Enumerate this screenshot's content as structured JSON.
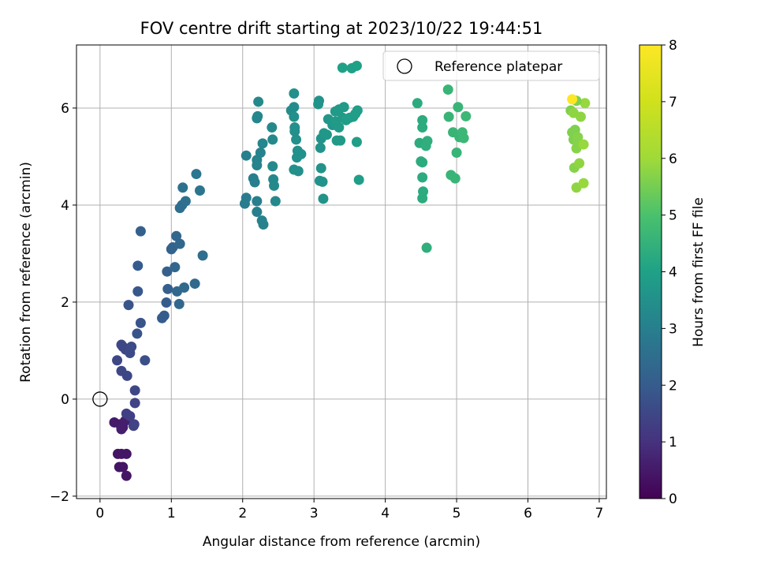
{
  "chart_data": {
    "type": "scatter",
    "title": "FOV centre drift starting at 2023/10/22 19:44:51",
    "xlabel": "Angular distance from reference (arcmin)",
    "ylabel": "Rotation from reference (arcmin)",
    "xlim": [
      -0.33,
      7.1
    ],
    "ylim": [
      -2.05,
      7.3
    ],
    "xticks": [
      0,
      1,
      2,
      3,
      4,
      5,
      6,
      7
    ],
    "yticks": [
      -2,
      0,
      2,
      4,
      6
    ],
    "grid": true,
    "legend": {
      "location": "top-right",
      "entries": [
        "Reference platepar"
      ]
    },
    "reference_point": {
      "name": "Reference platepar",
      "x": 0,
      "y": 0
    },
    "colorbar": {
      "label": "Hours from first FF file",
      "range": [
        0,
        8
      ],
      "ticks": [
        0,
        1,
        2,
        3,
        4,
        5,
        6,
        7,
        8
      ],
      "colormap": "viridis"
    },
    "points": [
      {
        "x": 0.2,
        "y": -0.48,
        "h": 0.5
      },
      {
        "x": 0.28,
        "y": -0.52,
        "h": 0.5
      },
      {
        "x": 0.32,
        "y": -0.58,
        "h": 0.6
      },
      {
        "x": 0.3,
        "y": -0.62,
        "h": 0.6
      },
      {
        "x": 0.35,
        "y": -0.45,
        "h": 0.6
      },
      {
        "x": 0.25,
        "y": -1.13,
        "h": 0.4
      },
      {
        "x": 0.3,
        "y": -1.13,
        "h": 0.4
      },
      {
        "x": 0.37,
        "y": -1.13,
        "h": 0.4
      },
      {
        "x": 0.27,
        "y": -1.4,
        "h": 0.4
      },
      {
        "x": 0.32,
        "y": -1.4,
        "h": 0.4
      },
      {
        "x": 0.37,
        "y": -1.58,
        "h": 0.4
      },
      {
        "x": 0.47,
        "y": -0.55,
        "h": 1.4
      },
      {
        "x": 0.48,
        "y": -0.52,
        "h": 1.4
      },
      {
        "x": 0.37,
        "y": -0.3,
        "h": 1.3
      },
      {
        "x": 0.42,
        "y": -0.35,
        "h": 1.3
      },
      {
        "x": 0.49,
        "y": -0.08,
        "h": 1.4
      },
      {
        "x": 0.49,
        "y": 0.18,
        "h": 1.5
      },
      {
        "x": 0.38,
        "y": 0.48,
        "h": 1.5
      },
      {
        "x": 0.3,
        "y": 0.58,
        "h": 1.5
      },
      {
        "x": 0.24,
        "y": 0.8,
        "h": 1.5
      },
      {
        "x": 0.32,
        "y": 1.08,
        "h": 1.5
      },
      {
        "x": 0.3,
        "y": 1.12,
        "h": 1.5
      },
      {
        "x": 0.36,
        "y": 1.02,
        "h": 1.5
      },
      {
        "x": 0.44,
        "y": 1.08,
        "h": 1.6
      },
      {
        "x": 0.42,
        "y": 0.95,
        "h": 1.6
      },
      {
        "x": 0.52,
        "y": 1.35,
        "h": 1.8
      },
      {
        "x": 0.57,
        "y": 1.57,
        "h": 1.8
      },
      {
        "x": 0.63,
        "y": 0.8,
        "h": 1.7
      },
      {
        "x": 0.4,
        "y": 1.94,
        "h": 1.8
      },
      {
        "x": 0.53,
        "y": 2.22,
        "h": 1.9
      },
      {
        "x": 0.53,
        "y": 2.75,
        "h": 2.0
      },
      {
        "x": 0.57,
        "y": 3.46,
        "h": 2.1
      },
      {
        "x": 0.87,
        "y": 1.67,
        "h": 2.0
      },
      {
        "x": 0.9,
        "y": 1.72,
        "h": 2.0
      },
      {
        "x": 0.93,
        "y": 1.99,
        "h": 2.0
      },
      {
        "x": 0.95,
        "y": 2.27,
        "h": 2.1
      },
      {
        "x": 0.94,
        "y": 2.63,
        "h": 2.1
      },
      {
        "x": 1.0,
        "y": 3.09,
        "h": 2.2
      },
      {
        "x": 1.02,
        "y": 3.13,
        "h": 2.2
      },
      {
        "x": 1.07,
        "y": 3.36,
        "h": 2.3
      },
      {
        "x": 1.12,
        "y": 3.2,
        "h": 2.3
      },
      {
        "x": 1.05,
        "y": 2.72,
        "h": 2.3
      },
      {
        "x": 1.08,
        "y": 2.22,
        "h": 2.3
      },
      {
        "x": 1.11,
        "y": 1.96,
        "h": 2.3
      },
      {
        "x": 1.18,
        "y": 2.3,
        "h": 2.4
      },
      {
        "x": 1.33,
        "y": 2.38,
        "h": 2.4
      },
      {
        "x": 1.44,
        "y": 2.96,
        "h": 2.5
      },
      {
        "x": 1.12,
        "y": 3.94,
        "h": 2.5
      },
      {
        "x": 1.15,
        "y": 4.0,
        "h": 2.5
      },
      {
        "x": 1.2,
        "y": 4.08,
        "h": 2.6
      },
      {
        "x": 1.16,
        "y": 4.36,
        "h": 2.6
      },
      {
        "x": 1.35,
        "y": 4.64,
        "h": 2.7
      },
      {
        "x": 1.4,
        "y": 4.3,
        "h": 2.7
      },
      {
        "x": 2.03,
        "y": 4.03,
        "h": 2.9
      },
      {
        "x": 2.05,
        "y": 4.15,
        "h": 2.9
      },
      {
        "x": 2.05,
        "y": 5.02,
        "h": 3.0
      },
      {
        "x": 2.15,
        "y": 4.55,
        "h": 3.0
      },
      {
        "x": 2.17,
        "y": 4.47,
        "h": 3.0
      },
      {
        "x": 2.2,
        "y": 4.08,
        "h": 3.0
      },
      {
        "x": 2.2,
        "y": 3.86,
        "h": 3.0
      },
      {
        "x": 2.27,
        "y": 3.68,
        "h": 3.1
      },
      {
        "x": 2.29,
        "y": 3.6,
        "h": 3.1
      },
      {
        "x": 2.2,
        "y": 4.82,
        "h": 3.1
      },
      {
        "x": 2.2,
        "y": 4.93,
        "h": 3.1
      },
      {
        "x": 2.25,
        "y": 5.08,
        "h": 3.1
      },
      {
        "x": 2.28,
        "y": 5.27,
        "h": 3.2
      },
      {
        "x": 2.2,
        "y": 5.79,
        "h": 3.2
      },
      {
        "x": 2.21,
        "y": 5.83,
        "h": 3.2
      },
      {
        "x": 2.22,
        "y": 6.13,
        "h": 3.3
      },
      {
        "x": 2.41,
        "y": 5.6,
        "h": 3.3
      },
      {
        "x": 2.42,
        "y": 5.35,
        "h": 3.3
      },
      {
        "x": 2.42,
        "y": 4.8,
        "h": 3.3
      },
      {
        "x": 2.43,
        "y": 4.53,
        "h": 3.3
      },
      {
        "x": 2.44,
        "y": 4.4,
        "h": 3.3
      },
      {
        "x": 2.46,
        "y": 4.08,
        "h": 3.3
      },
      {
        "x": 2.68,
        "y": 5.95,
        "h": 3.4
      },
      {
        "x": 2.72,
        "y": 6.02,
        "h": 3.4
      },
      {
        "x": 2.72,
        "y": 6.3,
        "h": 3.5
      },
      {
        "x": 2.72,
        "y": 5.82,
        "h": 3.5
      },
      {
        "x": 2.73,
        "y": 5.6,
        "h": 3.5
      },
      {
        "x": 2.73,
        "y": 5.52,
        "h": 3.5
      },
      {
        "x": 2.75,
        "y": 5.35,
        "h": 3.5
      },
      {
        "x": 2.77,
        "y": 5.12,
        "h": 3.5
      },
      {
        "x": 2.82,
        "y": 5.05,
        "h": 3.5
      },
      {
        "x": 2.76,
        "y": 4.98,
        "h": 3.5
      },
      {
        "x": 2.72,
        "y": 4.73,
        "h": 3.5
      },
      {
        "x": 2.78,
        "y": 4.7,
        "h": 3.5
      },
      {
        "x": 3.06,
        "y": 6.08,
        "h": 3.6
      },
      {
        "x": 3.07,
        "y": 6.15,
        "h": 3.6
      },
      {
        "x": 3.1,
        "y": 5.37,
        "h": 3.6
      },
      {
        "x": 3.09,
        "y": 5.18,
        "h": 3.6
      },
      {
        "x": 3.1,
        "y": 4.76,
        "h": 3.6
      },
      {
        "x": 3.08,
        "y": 4.5,
        "h": 3.6
      },
      {
        "x": 3.12,
        "y": 4.48,
        "h": 3.6
      },
      {
        "x": 3.13,
        "y": 4.13,
        "h": 3.6
      },
      {
        "x": 3.14,
        "y": 5.48,
        "h": 3.7
      },
      {
        "x": 3.18,
        "y": 5.45,
        "h": 3.7
      },
      {
        "x": 3.2,
        "y": 5.77,
        "h": 3.7
      },
      {
        "x": 3.26,
        "y": 5.65,
        "h": 3.7
      },
      {
        "x": 3.3,
        "y": 5.72,
        "h": 3.8
      },
      {
        "x": 3.3,
        "y": 5.93,
        "h": 3.8
      },
      {
        "x": 3.35,
        "y": 5.97,
        "h": 3.8
      },
      {
        "x": 3.32,
        "y": 5.33,
        "h": 3.8
      },
      {
        "x": 3.37,
        "y": 5.33,
        "h": 3.8
      },
      {
        "x": 3.35,
        "y": 5.6,
        "h": 3.8
      },
      {
        "x": 3.4,
        "y": 5.8,
        "h": 3.8
      },
      {
        "x": 3.42,
        "y": 6.02,
        "h": 3.8
      },
      {
        "x": 3.45,
        "y": 5.75,
        "h": 3.9
      },
      {
        "x": 3.5,
        "y": 5.8,
        "h": 3.9
      },
      {
        "x": 3.55,
        "y": 5.82,
        "h": 3.9
      },
      {
        "x": 3.58,
        "y": 5.88,
        "h": 3.9
      },
      {
        "x": 3.61,
        "y": 5.95,
        "h": 3.9
      },
      {
        "x": 3.6,
        "y": 5.3,
        "h": 3.9
      },
      {
        "x": 3.63,
        "y": 4.52,
        "h": 3.9
      },
      {
        "x": 3.4,
        "y": 6.83,
        "h": 4.0
      },
      {
        "x": 3.53,
        "y": 6.82,
        "h": 4.0
      },
      {
        "x": 3.6,
        "y": 6.87,
        "h": 4.0
      },
      {
        "x": 4.45,
        "y": 6.1,
        "h": 4.3
      },
      {
        "x": 4.48,
        "y": 5.28,
        "h": 4.3
      },
      {
        "x": 4.5,
        "y": 4.9,
        "h": 4.3
      },
      {
        "x": 4.52,
        "y": 4.88,
        "h": 4.3
      },
      {
        "x": 4.52,
        "y": 4.57,
        "h": 4.3
      },
      {
        "x": 4.53,
        "y": 4.28,
        "h": 4.3
      },
      {
        "x": 4.52,
        "y": 4.14,
        "h": 4.3
      },
      {
        "x": 4.52,
        "y": 5.6,
        "h": 4.3
      },
      {
        "x": 4.52,
        "y": 5.75,
        "h": 4.3
      },
      {
        "x": 4.57,
        "y": 5.22,
        "h": 4.4
      },
      {
        "x": 4.59,
        "y": 5.32,
        "h": 4.4
      },
      {
        "x": 4.58,
        "y": 3.12,
        "h": 4.4
      },
      {
        "x": 4.88,
        "y": 6.38,
        "h": 4.6
      },
      {
        "x": 4.89,
        "y": 5.82,
        "h": 4.6
      },
      {
        "x": 4.95,
        "y": 5.5,
        "h": 4.6
      },
      {
        "x": 4.92,
        "y": 4.62,
        "h": 4.6
      },
      {
        "x": 4.98,
        "y": 4.55,
        "h": 4.6
      },
      {
        "x": 5.0,
        "y": 5.08,
        "h": 4.6
      },
      {
        "x": 5.02,
        "y": 6.02,
        "h": 4.6
      },
      {
        "x": 5.04,
        "y": 5.4,
        "h": 4.6
      },
      {
        "x": 5.08,
        "y": 5.5,
        "h": 4.7
      },
      {
        "x": 5.1,
        "y": 5.38,
        "h": 4.7
      },
      {
        "x": 5.13,
        "y": 5.83,
        "h": 4.7
      },
      {
        "x": 6.6,
        "y": 5.95,
        "h": 5.6
      },
      {
        "x": 6.62,
        "y": 5.5,
        "h": 5.6
      },
      {
        "x": 6.64,
        "y": 5.35,
        "h": 5.6
      },
      {
        "x": 6.66,
        "y": 5.55,
        "h": 5.6
      },
      {
        "x": 6.65,
        "y": 4.77,
        "h": 5.7
      },
      {
        "x": 6.68,
        "y": 5.17,
        "h": 5.7
      },
      {
        "x": 6.7,
        "y": 5.4,
        "h": 5.7
      },
      {
        "x": 6.7,
        "y": 5.3,
        "h": 5.7
      },
      {
        "x": 6.68,
        "y": 4.36,
        "h": 5.8
      },
      {
        "x": 6.72,
        "y": 4.86,
        "h": 5.8
      },
      {
        "x": 6.74,
        "y": 5.82,
        "h": 5.8
      },
      {
        "x": 6.78,
        "y": 4.45,
        "h": 5.9
      },
      {
        "x": 6.78,
        "y": 5.25,
        "h": 5.9
      },
      {
        "x": 6.8,
        "y": 6.1,
        "h": 5.9
      },
      {
        "x": 6.64,
        "y": 5.9,
        "h": 5.8
      },
      {
        "x": 6.68,
        "y": 6.15,
        "h": 5.6
      },
      {
        "x": 6.62,
        "y": 6.18,
        "h": 8.0
      }
    ]
  }
}
